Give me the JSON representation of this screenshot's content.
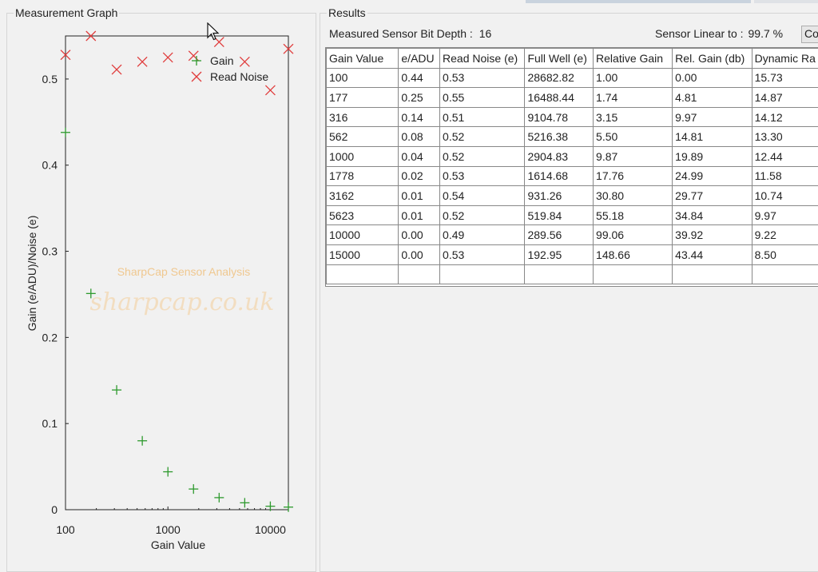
{
  "graph_panel": {
    "title": "Measurement Graph"
  },
  "results_panel": {
    "title": "Results",
    "bit_depth_label": "Measured Sensor Bit Depth :",
    "bit_depth_value": "16",
    "linear_label": "Sensor Linear to :",
    "linear_value": "99.7 %",
    "copy_button_label": "Copy"
  },
  "table": {
    "columns": [
      "Gain Value",
      "e/ADU",
      "Read Noise (e)",
      "Full Well (e)",
      "Relative Gain",
      "Rel. Gain (db)",
      "Dynamic Ra"
    ],
    "rows": [
      [
        "100",
        "0.44",
        "0.53",
        "28682.82",
        "1.00",
        "0.00",
        "15.73"
      ],
      [
        "177",
        "0.25",
        "0.55",
        "16488.44",
        "1.74",
        "4.81",
        "14.87"
      ],
      [
        "316",
        "0.14",
        "0.51",
        "9104.78",
        "3.15",
        "9.97",
        "14.12"
      ],
      [
        "562",
        "0.08",
        "0.52",
        "5216.38",
        "5.50",
        "14.81",
        "13.30"
      ],
      [
        "1000",
        "0.04",
        "0.52",
        "2904.83",
        "9.87",
        "19.89",
        "12.44"
      ],
      [
        "1778",
        "0.02",
        "0.53",
        "1614.68",
        "17.76",
        "24.99",
        "11.58"
      ],
      [
        "3162",
        "0.01",
        "0.54",
        "931.26",
        "30.80",
        "29.77",
        "10.74"
      ],
      [
        "5623",
        "0.01",
        "0.52",
        "519.84",
        "55.18",
        "34.84",
        "9.97"
      ],
      [
        "10000",
        "0.00",
        "0.49",
        "289.56",
        "99.06",
        "39.92",
        "9.22"
      ],
      [
        "15000",
        "0.00",
        "0.53",
        "192.95",
        "148.66",
        "43.44",
        "8.50"
      ],
      [
        "",
        "",
        "",
        "",
        "",
        "",
        ""
      ]
    ]
  },
  "watermark": {
    "line1": "SharpCap Sensor Analysis",
    "line2": "sharpcap.co.uk",
    "big": "sharpcap.co"
  },
  "chart_data": {
    "type": "scatter",
    "xlabel": "Gain Value",
    "ylabel": "Gain (e/ADU)/Noise (e)",
    "x_scale": "log",
    "xlim": [
      100,
      15000
    ],
    "ylim": [
      0,
      0.55
    ],
    "x_ticks": [
      100,
      1000,
      10000
    ],
    "x_tick_labels": [
      "100",
      "1000",
      "10000"
    ],
    "y_ticks": [
      0,
      0.1,
      0.2,
      0.3,
      0.4,
      0.5
    ],
    "y_tick_labels": [
      "0",
      "0.1",
      "0.2",
      "0.3",
      "0.4",
      "0.5"
    ],
    "legend_position": "top-right",
    "series": [
      {
        "name": "Gain",
        "marker": "plus",
        "color": "#2e9a2e",
        "x": [
          100,
          177,
          316,
          562,
          1000,
          1778,
          3162,
          5623,
          10000,
          15000
        ],
        "y": [
          0.438,
          0.251,
          0.139,
          0.08,
          0.044,
          0.024,
          0.014,
          0.008,
          0.004,
          0.003
        ]
      },
      {
        "name": "Read Noise",
        "marker": "cross",
        "color": "#e03c3c",
        "x": [
          100,
          177,
          316,
          562,
          1000,
          1778,
          3162,
          5623,
          10000,
          15000
        ],
        "y": [
          0.528,
          0.55,
          0.511,
          0.52,
          0.525,
          0.527,
          0.543,
          0.52,
          0.487,
          0.535
        ]
      }
    ]
  }
}
